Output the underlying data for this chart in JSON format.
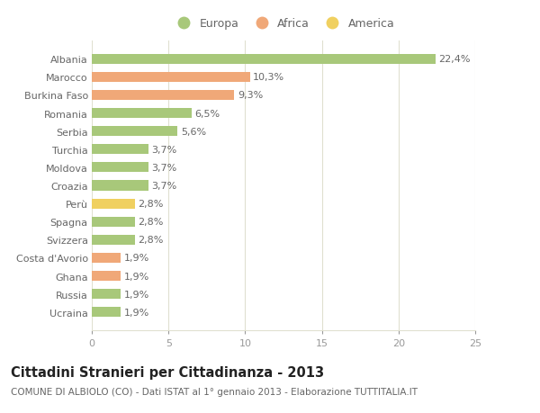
{
  "categories": [
    "Ucraina",
    "Russia",
    "Ghana",
    "Costa d'Avorio",
    "Svizzera",
    "Spagna",
    "Perù",
    "Croazia",
    "Moldova",
    "Turchia",
    "Serbia",
    "Romania",
    "Burkina Faso",
    "Marocco",
    "Albania"
  ],
  "values": [
    1.9,
    1.9,
    1.9,
    1.9,
    2.8,
    2.8,
    2.8,
    3.7,
    3.7,
    3.7,
    5.6,
    6.5,
    9.3,
    10.3,
    22.4
  ],
  "colors": [
    "#a8c87a",
    "#a8c87a",
    "#f0a878",
    "#f0a878",
    "#a8c87a",
    "#a8c87a",
    "#f0d060",
    "#a8c87a",
    "#a8c87a",
    "#a8c87a",
    "#a8c87a",
    "#a8c87a",
    "#f0a878",
    "#f0a878",
    "#a8c87a"
  ],
  "labels": [
    "1,9%",
    "1,9%",
    "1,9%",
    "1,9%",
    "2,8%",
    "2,8%",
    "2,8%",
    "3,7%",
    "3,7%",
    "3,7%",
    "5,6%",
    "6,5%",
    "9,3%",
    "10,3%",
    "22,4%"
  ],
  "legend": [
    {
      "label": "Europa",
      "color": "#a8c87a"
    },
    {
      "label": "Africa",
      "color": "#f0a878"
    },
    {
      "label": "America",
      "color": "#f0d060"
    }
  ],
  "title": "Cittadini Stranieri per Cittadinanza - 2013",
  "subtitle": "COMUNE DI ALBIOLO (CO) - Dati ISTAT al 1° gennaio 2013 - Elaborazione TUTTITALIA.IT",
  "xlim": [
    0,
    25
  ],
  "xticks": [
    0,
    5,
    10,
    15,
    20,
    25
  ],
  "background_color": "#ffffff",
  "plot_bg_color": "#ffffff",
  "grid_color": "#e0e0d0",
  "title_fontsize": 10.5,
  "subtitle_fontsize": 7.5,
  "tick_fontsize": 8,
  "label_fontsize": 8
}
